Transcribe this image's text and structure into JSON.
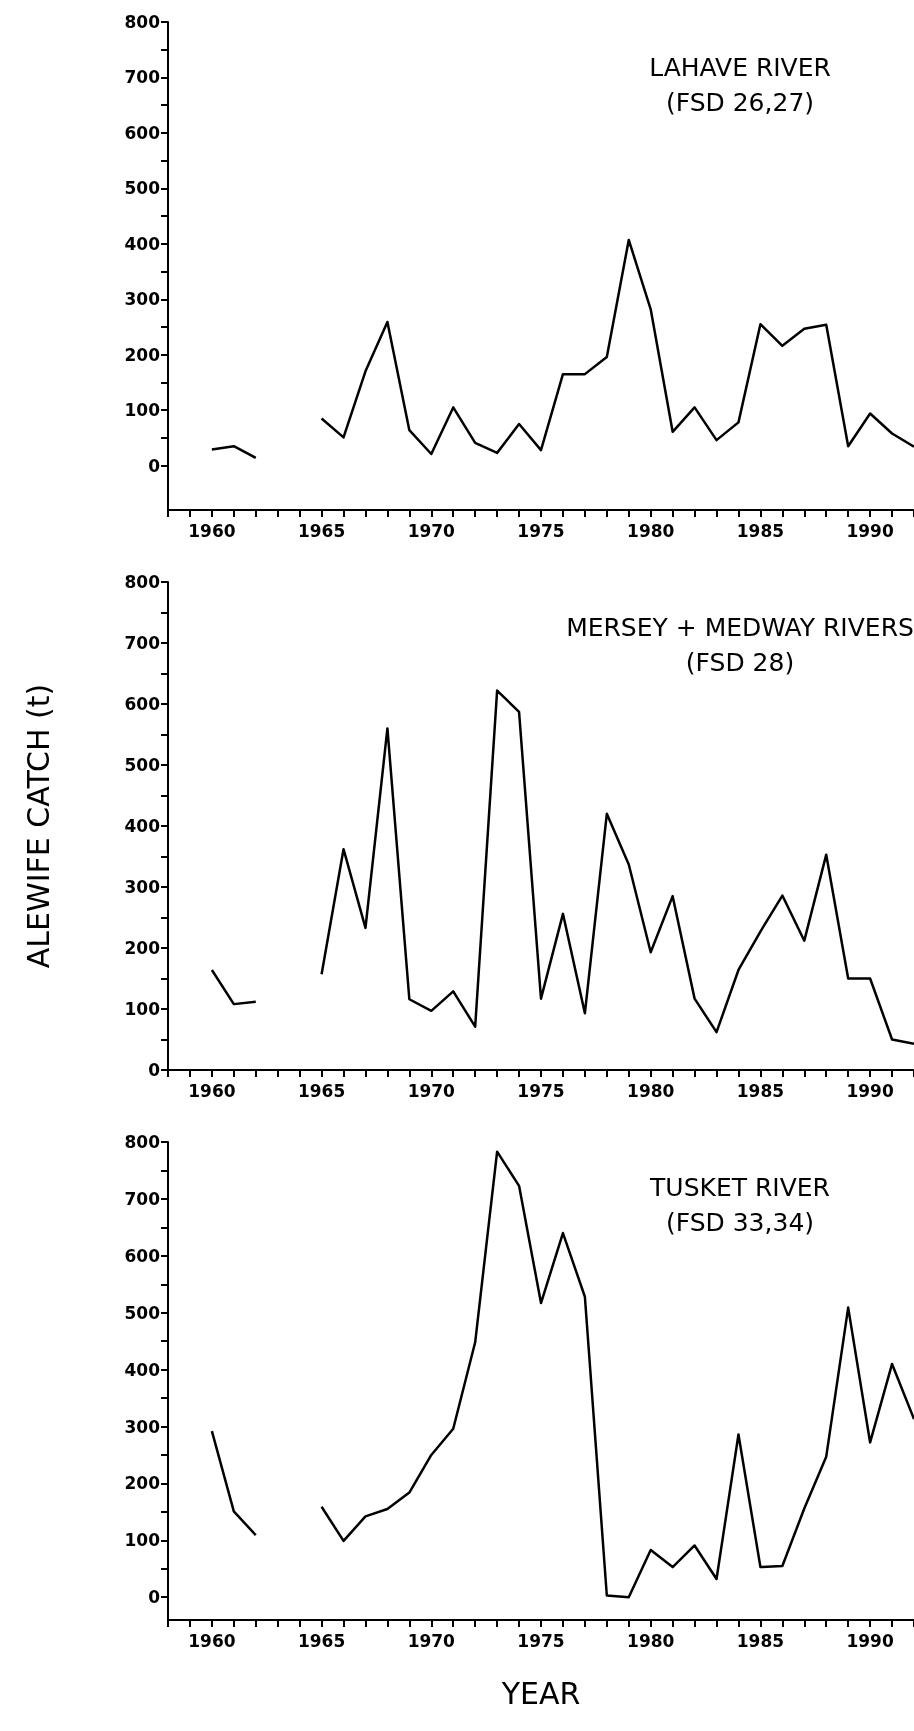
{
  "chart_data": [
    {
      "type": "line",
      "title": "LAHAVE RIVER",
      "subtitle": "(FSD 26,27)",
      "x": [
        1960,
        1961,
        1962,
        1963,
        1964,
        1965,
        1966,
        1967,
        1968,
        1969,
        1970,
        1971,
        1972,
        1973,
        1974,
        1975,
        1976,
        1977,
        1978,
        1979,
        1980,
        1981,
        1982,
        1983,
        1984,
        1985,
        1986,
        1987,
        1988,
        1989,
        1990,
        1991,
        1992
      ],
      "series": [
        {
          "color": "#000000",
          "values": [
            29,
            35,
            14,
            null,
            null,
            85,
            51,
            170,
            259,
            64,
            21,
            105,
            41,
            23,
            75,
            28,
            165,
            165,
            196,
            407,
            282,
            61,
            105,
            46,
            78,
            255,
            216,
            247,
            254,
            35,
            94,
            58,
            34
          ]
        }
      ],
      "xlim": [
        1958,
        1992
      ],
      "xticks": [
        {
          "value": 1958,
          "label": null
        },
        {
          "value": 1959,
          "label": null
        },
        1960,
        {
          "value": 1961,
          "label": null
        },
        {
          "value": 1962,
          "label": null
        },
        {
          "value": 1963,
          "label": null
        },
        {
          "value": 1964,
          "label": null
        },
        1965,
        {
          "value": 1966,
          "label": null
        },
        {
          "value": 1967,
          "label": null
        },
        {
          "value": 1968,
          "label": null
        },
        {
          "value": 1969,
          "label": null
        },
        1970,
        {
          "value": 1971,
          "label": null
        },
        {
          "value": 1972,
          "label": null
        },
        {
          "value": 1973,
          "label": null
        },
        {
          "value": 1974,
          "label": null
        },
        1975,
        {
          "value": 1976,
          "label": null
        },
        {
          "value": 1977,
          "label": null
        },
        {
          "value": 1978,
          "label": null
        },
        {
          "value": 1979,
          "label": null
        },
        1980,
        {
          "value": 1981,
          "label": null
        },
        {
          "value": 1982,
          "label": null
        },
        {
          "value": 1983,
          "label": null
        },
        {
          "value": 1984,
          "label": null
        },
        1985,
        {
          "value": 1986,
          "label": null
        },
        {
          "value": 1987,
          "label": null
        },
        {
          "value": 1988,
          "label": null
        },
        {
          "value": 1989,
          "label": null
        },
        1990,
        {
          "value": 1991,
          "label": null
        },
        {
          "value": 1992,
          "label": null
        }
      ],
      "ylim": [
        -80,
        800
      ],
      "yticks": [
        0,
        {
          "value": 50,
          "label": null
        },
        100,
        {
          "value": 150,
          "label": null
        },
        200,
        {
          "value": 250,
          "label": null
        },
        300,
        {
          "value": 350,
          "label": null
        },
        400,
        {
          "value": 450,
          "label": null
        },
        500,
        {
          "value": 550,
          "label": null
        },
        600,
        {
          "value": 650,
          "label": null
        },
        700,
        {
          "value": 750,
          "label": null
        },
        800
      ],
      "grid": false,
      "marker": "none",
      "line_style": "solid"
    },
    {
      "type": "line",
      "title": "MERSEY + MEDWAY RIVERS",
      "subtitle": "(FSD 28)",
      "ylabel": "ALEWIFE CATCH (t)",
      "x": [
        1960,
        1961,
        1962,
        1963,
        1964,
        1965,
        1966,
        1967,
        1968,
        1969,
        1970,
        1971,
        1972,
        1973,
        1974,
        1975,
        1976,
        1977,
        1978,
        1979,
        1980,
        1981,
        1982,
        1983,
        1984,
        1985,
        1986,
        1987,
        1988,
        1989,
        1990,
        1991,
        1992
      ],
      "series": [
        {
          "color": "#000000",
          "values": [
            164,
            108,
            112,
            null,
            null,
            157,
            362,
            233,
            560,
            116,
            97,
            129,
            71,
            622,
            587,
            117,
            256,
            93,
            420,
            337,
            193,
            285,
            117,
            62,
            164,
            227,
            286,
            212,
            353,
            150,
            150,
            50,
            43
          ]
        }
      ],
      "xlim": [
        1958,
        1992
      ],
      "xticks": [
        {
          "value": 1958,
          "label": null
        },
        {
          "value": 1959,
          "label": null
        },
        1960,
        {
          "value": 1961,
          "label": null
        },
        {
          "value": 1962,
          "label": null
        },
        {
          "value": 1963,
          "label": null
        },
        {
          "value": 1964,
          "label": null
        },
        1965,
        {
          "value": 1966,
          "label": null
        },
        {
          "value": 1967,
          "label": null
        },
        {
          "value": 1968,
          "label": null
        },
        {
          "value": 1969,
          "label": null
        },
        1970,
        {
          "value": 1971,
          "label": null
        },
        {
          "value": 1972,
          "label": null
        },
        {
          "value": 1973,
          "label": null
        },
        {
          "value": 1974,
          "label": null
        },
        1975,
        {
          "value": 1976,
          "label": null
        },
        {
          "value": 1977,
          "label": null
        },
        {
          "value": 1978,
          "label": null
        },
        {
          "value": 1979,
          "label": null
        },
        1980,
        {
          "value": 1981,
          "label": null
        },
        {
          "value": 1982,
          "label": null
        },
        {
          "value": 1983,
          "label": null
        },
        {
          "value": 1984,
          "label": null
        },
        1985,
        {
          "value": 1986,
          "label": null
        },
        {
          "value": 1987,
          "label": null
        },
        {
          "value": 1988,
          "label": null
        },
        {
          "value": 1989,
          "label": null
        },
        1990,
        {
          "value": 1991,
          "label": null
        },
        {
          "value": 1992,
          "label": null
        }
      ],
      "ylim": [
        0,
        800
      ],
      "yticks": [
        0,
        {
          "value": 50,
          "label": null
        },
        100,
        {
          "value": 150,
          "label": null
        },
        200,
        {
          "value": 250,
          "label": null
        },
        300,
        {
          "value": 350,
          "label": null
        },
        400,
        {
          "value": 450,
          "label": null
        },
        500,
        {
          "value": 550,
          "label": null
        },
        600,
        {
          "value": 650,
          "label": null
        },
        700,
        {
          "value": 750,
          "label": null
        },
        800
      ],
      "grid": false,
      "marker": "none",
      "line_style": "solid"
    },
    {
      "type": "line",
      "title": "TUSKET RIVER",
      "subtitle": "(FSD 33,34)",
      "xlabel": "YEAR",
      "x": [
        1960,
        1961,
        1962,
        1963,
        1964,
        1965,
        1966,
        1967,
        1968,
        1969,
        1970,
        1971,
        1972,
        1973,
        1974,
        1975,
        1976,
        1977,
        1978,
        1979,
        1980,
        1981,
        1982,
        1983,
        1984,
        1985,
        1986,
        1987,
        1988,
        1989,
        1990,
        1991,
        1992
      ],
      "series": [
        {
          "color": "#000000",
          "values": [
            292,
            151,
            109,
            null,
            null,
            159,
            99,
            142,
            155,
            184,
            250,
            296,
            448,
            783,
            723,
            517,
            640,
            528,
            3,
            0,
            83,
            53,
            91,
            32,
            286,
            53,
            55,
            156,
            247,
            509,
            272,
            410,
            313
          ]
        }
      ],
      "xlim": [
        1958,
        1992
      ],
      "xticks": [
        {
          "value": 1958,
          "label": null
        },
        {
          "value": 1959,
          "label": null
        },
        1960,
        {
          "value": 1961,
          "label": null
        },
        {
          "value": 1962,
          "label": null
        },
        {
          "value": 1963,
          "label": null
        },
        {
          "value": 1964,
          "label": null
        },
        1965,
        {
          "value": 1966,
          "label": null
        },
        {
          "value": 1967,
          "label": null
        },
        {
          "value": 1968,
          "label": null
        },
        {
          "value": 1969,
          "label": null
        },
        1970,
        {
          "value": 1971,
          "label": null
        },
        {
          "value": 1972,
          "label": null
        },
        {
          "value": 1973,
          "label": null
        },
        {
          "value": 1974,
          "label": null
        },
        1975,
        {
          "value": 1976,
          "label": null
        },
        {
          "value": 1977,
          "label": null
        },
        {
          "value": 1978,
          "label": null
        },
        {
          "value": 1979,
          "label": null
        },
        1980,
        {
          "value": 1981,
          "label": null
        },
        {
          "value": 1982,
          "label": null
        },
        {
          "value": 1983,
          "label": null
        },
        {
          "value": 1984,
          "label": null
        },
        1985,
        {
          "value": 1986,
          "label": null
        },
        {
          "value": 1987,
          "label": null
        },
        {
          "value": 1988,
          "label": null
        },
        {
          "value": 1989,
          "label": null
        },
        1990,
        {
          "value": 1991,
          "label": null
        },
        {
          "value": 1992,
          "label": null
        }
      ],
      "ylim": [
        -40,
        800
      ],
      "yticks": [
        0,
        {
          "value": 50,
          "label": null
        },
        100,
        {
          "value": 150,
          "label": null
        },
        200,
        {
          "value": 250,
          "label": null
        },
        300,
        {
          "value": 350,
          "label": null
        },
        400,
        {
          "value": 450,
          "label": null
        },
        500,
        {
          "value": 550,
          "label": null
        },
        600,
        {
          "value": 650,
          "label": null
        },
        700,
        {
          "value": 750,
          "label": null
        },
        800
      ],
      "grid": false,
      "marker": "none",
      "line_style": "solid"
    }
  ]
}
